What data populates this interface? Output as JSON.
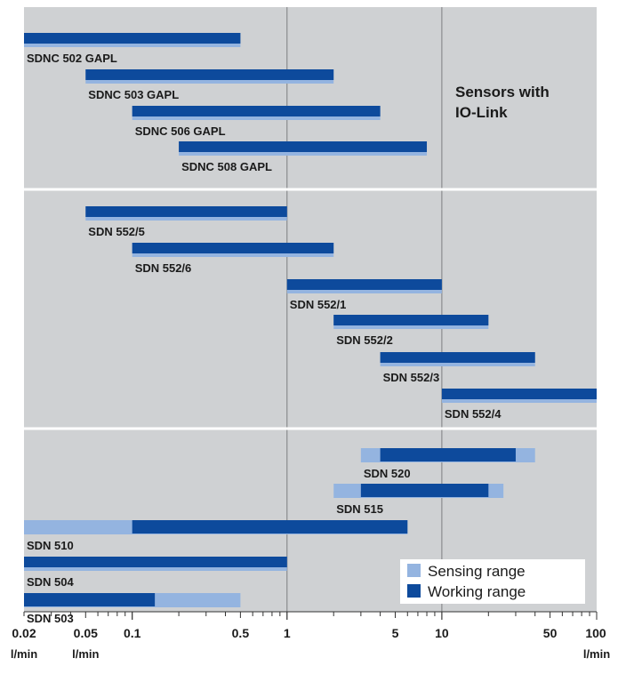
{
  "chart_data": {
    "type": "bar",
    "orientation": "horizontal-range",
    "x_scale": "log",
    "xlim": [
      0.02,
      100
    ],
    "ticks": [
      {
        "value": 0.02,
        "label": "0.02"
      },
      {
        "value": 0.05,
        "label": "0.05"
      },
      {
        "value": 0.1,
        "label": "0.1"
      },
      {
        "value": 0.5,
        "label": "0.5"
      },
      {
        "value": 1,
        "label": "1"
      },
      {
        "value": 5,
        "label": "5"
      },
      {
        "value": 10,
        "label": "10"
      },
      {
        "value": 50,
        "label": "50"
      },
      {
        "value": 100,
        "label": "100"
      }
    ],
    "unit_labels": [
      {
        "value": 0.02,
        "label": "l/min"
      },
      {
        "value": 0.05,
        "label": "l/min"
      },
      {
        "value": 100,
        "label": "l/min"
      }
    ],
    "gridlines_major": [
      1,
      10
    ],
    "legend": {
      "position": "bottom-right",
      "items": [
        {
          "name": "Sensing range",
          "color": "#94b4e0"
        },
        {
          "name": "Working range",
          "color": "#0d4a9c"
        }
      ]
    },
    "annotation": [
      "Sensors with",
      "IO-Link"
    ],
    "groups": [
      {
        "bars": [
          {
            "label": "SDNC 502 GAPL",
            "sensing": [
              0.02,
              0.5
            ],
            "working": [
              0.02,
              0.5
            ]
          },
          {
            "label": "SDNC 503 GAPL",
            "sensing": [
              0.05,
              2
            ],
            "working": [
              0.05,
              2
            ]
          },
          {
            "label": "SDNC 506 GAPL",
            "sensing": [
              0.1,
              4
            ],
            "working": [
              0.1,
              4
            ]
          },
          {
            "label": "SDNC 508 GAPL",
            "sensing": [
              0.2,
              8
            ],
            "working": [
              0.2,
              8
            ]
          }
        ]
      },
      {
        "bars": [
          {
            "label": "SDN 552/5",
            "sensing": [
              0.05,
              1
            ],
            "working": [
              0.05,
              1
            ]
          },
          {
            "label": "SDN 552/6",
            "sensing": [
              0.1,
              2
            ],
            "working": [
              0.1,
              2
            ]
          },
          {
            "label": "SDN 552/1",
            "sensing": [
              1,
              10
            ],
            "working": [
              1,
              10
            ]
          },
          {
            "label": "SDN 552/2",
            "sensing": [
              2,
              20
            ],
            "working": [
              2,
              20
            ]
          },
          {
            "label": "SDN 552/3",
            "sensing": [
              4,
              40
            ],
            "working": [
              4,
              40
            ]
          },
          {
            "label": "SDN 552/4",
            "sensing": [
              10,
              100
            ],
            "working": [
              10,
              100
            ]
          }
        ]
      },
      {
        "bars": [
          {
            "label": "SDN 520",
            "sensing": [
              3,
              40
            ],
            "working": [
              4,
              30
            ]
          },
          {
            "label": "SDN 515",
            "sensing": [
              2,
              25
            ],
            "working": [
              3,
              20
            ]
          },
          {
            "label": "SDN 510",
            "sensing": [
              0.02,
              6
            ],
            "working": [
              0.1,
              6
            ]
          },
          {
            "label": "SDN 504",
            "sensing": [
              0.02,
              1
            ],
            "working": [
              0.02,
              1
            ]
          },
          {
            "label": "SDN 503",
            "sensing": [
              0.02,
              0.5
            ],
            "working": [
              0.02,
              0.14
            ]
          }
        ]
      }
    ]
  }
}
